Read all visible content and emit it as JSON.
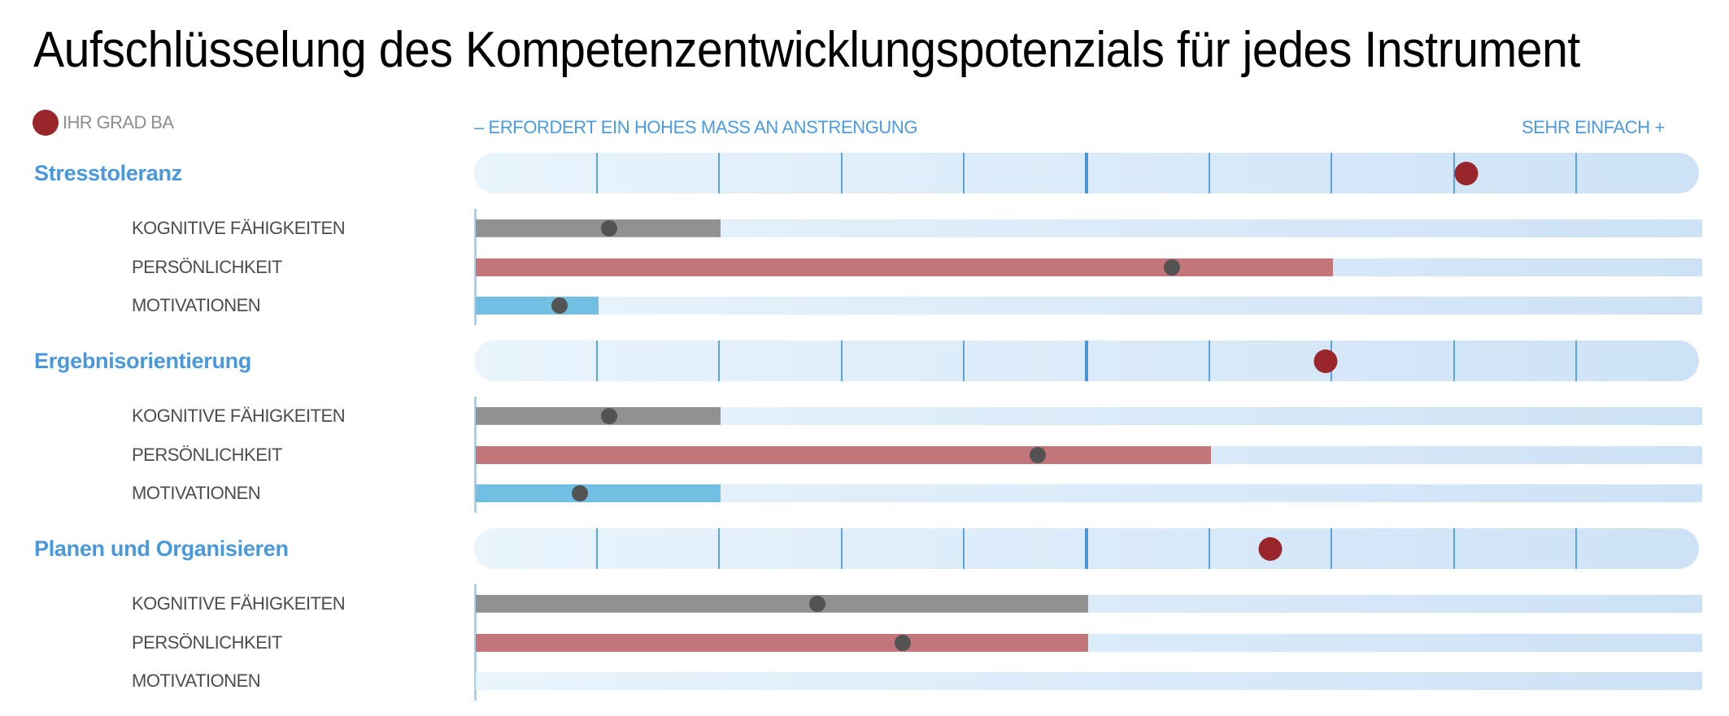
{
  "title": "Aufschlüsselung des Kompetenzentwicklungspotenzials für jedes Instrument",
  "legend": {
    "label": "IHR GRAD BA",
    "dot_color": "#98262a",
    "icon": "red-dot-icon"
  },
  "axis": {
    "left_label": "– ERFORDERT EIN HOHES MASS AN ANSTRENGUNG",
    "right_label": "SEHR EINFACH +"
  },
  "colors": {
    "accent_blue": "#4a98dc",
    "score_dot": "#98262a",
    "kognitive": "#919191",
    "persoenlichkeit": "#c27679",
    "motivationen": "#72bfe4",
    "marker_dot": "#535353",
    "track_start": "#e9f4fc",
    "track_end": "#cde2f6"
  },
  "sections": [
    {
      "title": "Stresstoleranz",
      "score": 81,
      "rows": [
        {
          "label": "KOGNITIVE FÄHIGKEITEN",
          "type": "gray",
          "bar_end": 20,
          "marker": 11
        },
        {
          "label": "PERSÖNLICHKEIT",
          "type": "red",
          "bar_end": 70,
          "marker": 57
        },
        {
          "label": "MOTIVATIONEN",
          "type": "blue",
          "bar_end": 10,
          "marker": 7
        }
      ]
    },
    {
      "title": "Ergebnisorientierung",
      "score": 69.5,
      "rows": [
        {
          "label": "KOGNITIVE FÄHIGKEITEN",
          "type": "gray",
          "bar_end": 20,
          "marker": 11
        },
        {
          "label": "PERSÖNLICHKEIT",
          "type": "red",
          "bar_end": 60,
          "marker": 46
        },
        {
          "label": "MOTIVATIONEN",
          "type": "blue",
          "bar_end": 20,
          "marker": 8.6
        }
      ]
    },
    {
      "title": "Planen und Organisieren",
      "score": 65,
      "rows": [
        {
          "label": "KOGNITIVE FÄHIGKEITEN",
          "type": "gray",
          "bar_end": 50,
          "marker": 28
        },
        {
          "label": "PERSÖNLICHKEIT",
          "type": "red",
          "bar_end": 50,
          "marker": 35
        },
        {
          "label": "MOTIVATIONEN",
          "type": "blue",
          "bar_end": 0,
          "marker": null
        }
      ]
    }
  ],
  "chart_data": {
    "type": "bar",
    "title": "Aufschlüsselung des Kompetenzentwicklungspotenzials für jedes Instrument",
    "xlabel": "",
    "ylabel": "",
    "x_axis_left_label": "– ERFORDERT EIN HOHES MASS AN ANSTRENGUNG",
    "x_axis_right_label": "SEHR EINFACH +",
    "xlim": [
      0,
      100
    ],
    "grid": {
      "ticks_every": 10,
      "midline": 50
    },
    "legend": [
      "IHR GRAD BA"
    ],
    "categories": [
      "Stresstoleranz",
      "Ergebnisorientierung",
      "Planen und Organisieren"
    ],
    "score_ihr_grad_ba": [
      81,
      69.5,
      65
    ],
    "series": [
      {
        "name": "KOGNITIVE FÄHIGKEITEN",
        "bar_values": [
          20,
          20,
          50
        ],
        "marker_values": [
          11,
          11,
          28
        ]
      },
      {
        "name": "PERSÖNLICHKEIT",
        "bar_values": [
          70,
          60,
          50
        ],
        "marker_values": [
          57,
          46,
          35
        ]
      },
      {
        "name": "MOTIVATIONEN",
        "bar_values": [
          10,
          20,
          0
        ],
        "marker_values": [
          7,
          8.6,
          null
        ]
      }
    ]
  }
}
